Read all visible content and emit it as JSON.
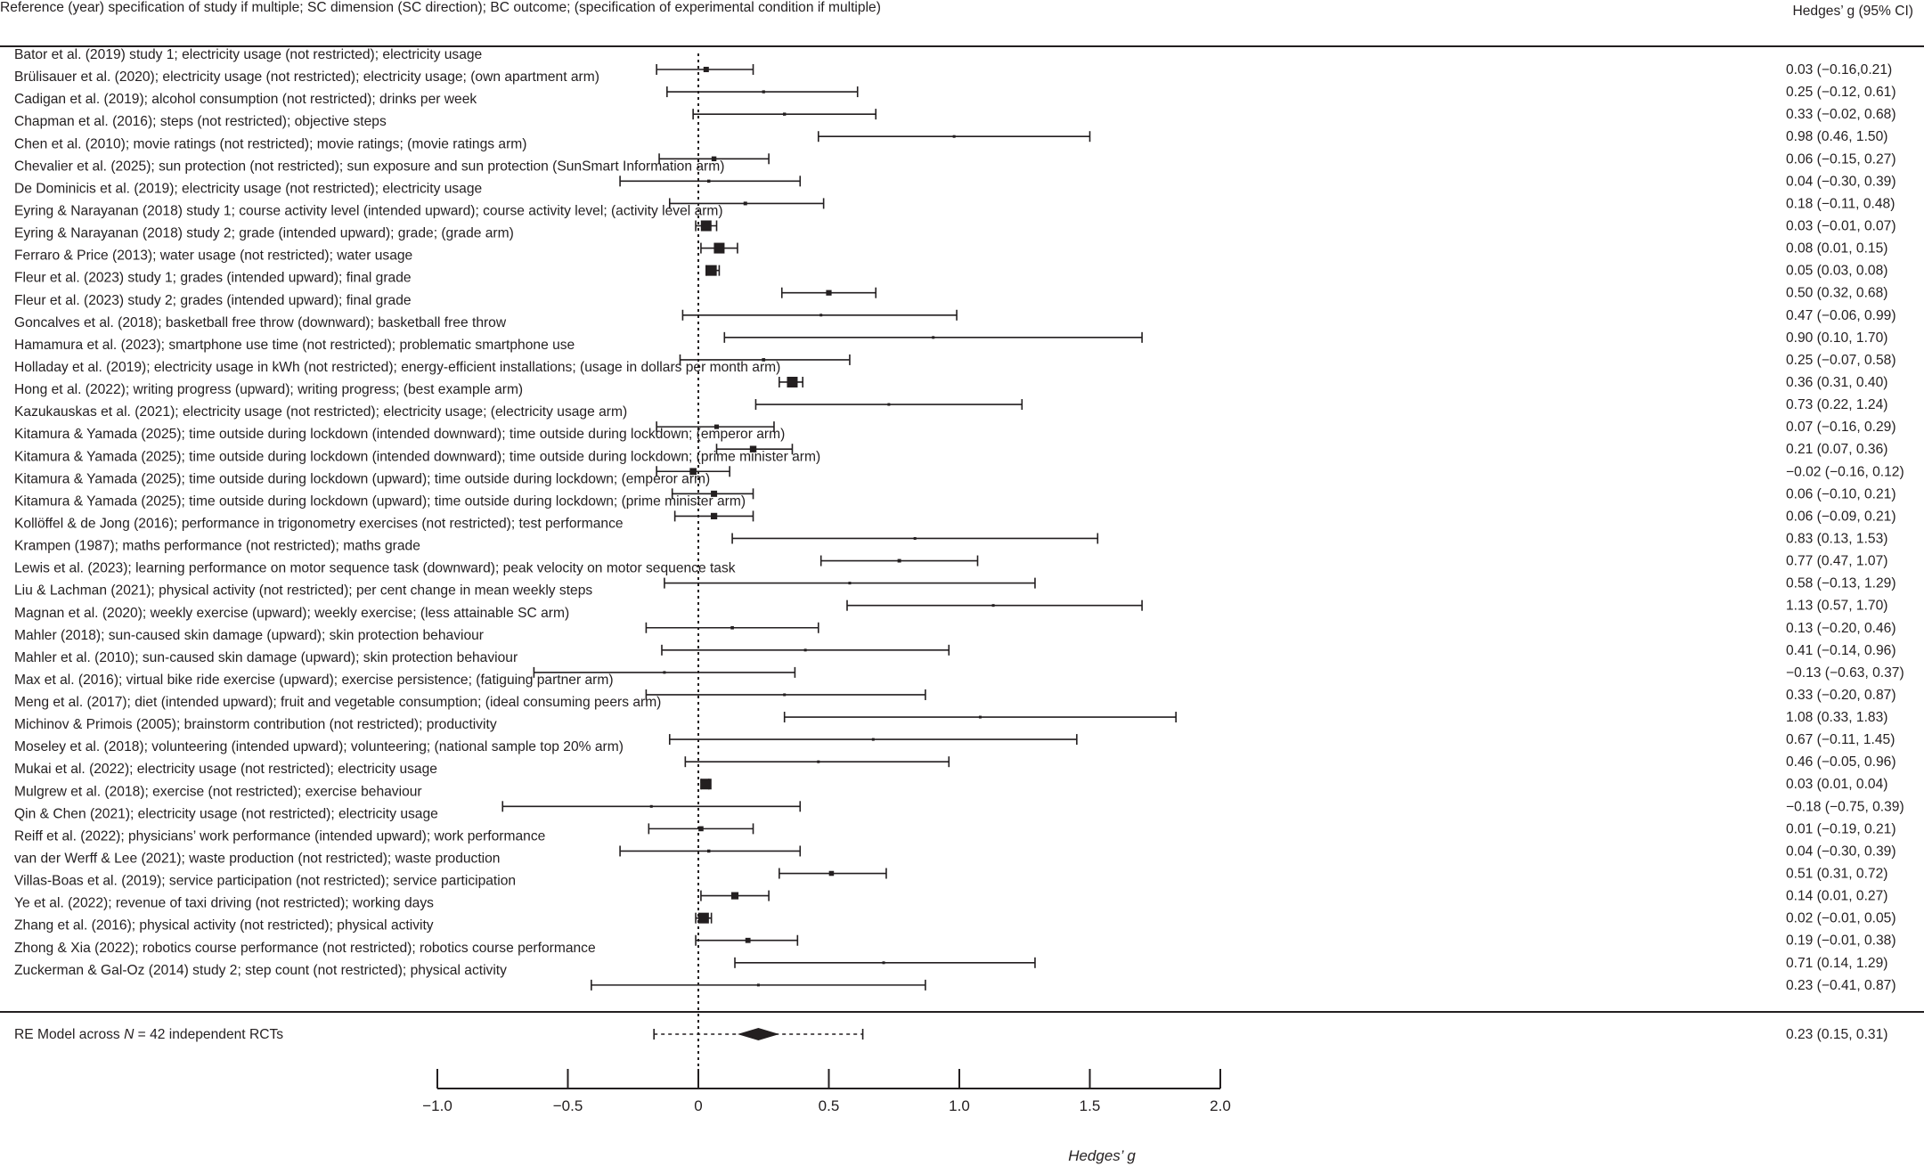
{
  "chart_data": {
    "type": "forest",
    "column_header_left": "Reference (year) specification of study if multiple; SC dimension (SC direction); BC outcome; (specification of experimental condition if multiple)",
    "column_header_right": "Hedges’ g (95% CI)",
    "xlabel": "Hedges’ g",
    "xlim": [
      -1.0,
      2.0
    ],
    "ticks": [
      -1.0,
      -0.5,
      0,
      0.5,
      1.0,
      1.5,
      2.0
    ],
    "tick_labels": [
      "−1.0",
      "−0.5",
      "0",
      "0.5",
      "1.0",
      "1.5",
      "2.0"
    ],
    "reference_line": 0,
    "studies": [
      {
        "label": "Bator et al. (2019) study 1; electricity usage (not restricted); electricity usage",
        "g": 0.03,
        "lo": -0.16,
        "hi": 0.21,
        "ci_text": "0.03 (−0.16,0.21)"
      },
      {
        "label": "Brülisauer et al. (2020); electricity usage (not restricted); electricity usage; (own apartment arm)",
        "g": 0.25,
        "lo": -0.12,
        "hi": 0.61,
        "ci_text": "0.25 (−0.12, 0.61)"
      },
      {
        "label": "Cadigan et al. (2019); alcohol consumption (not restricted); drinks per week",
        "g": 0.33,
        "lo": -0.02,
        "hi": 0.68,
        "ci_text": "0.33 (−0.02, 0.68)"
      },
      {
        "label": "Chapman et al. (2016); steps (not restricted); objective steps",
        "g": 0.98,
        "lo": 0.46,
        "hi": 1.5,
        "ci_text": "0.98 (0.46, 1.50)"
      },
      {
        "label": "Chen et al. (2010); movie ratings (not restricted); movie ratings; (movie ratings arm)",
        "g": 0.06,
        "lo": -0.15,
        "hi": 0.27,
        "ci_text": "0.06 (−0.15, 0.27)"
      },
      {
        "label": "Chevalier et al. (2025); sun protection (not restricted); sun exposure and sun protection (SunSmart Information arm)",
        "g": 0.04,
        "lo": -0.3,
        "hi": 0.39,
        "ci_text": "0.04 (−0.30, 0.39)"
      },
      {
        "label": "De Dominicis et al. (2019); electricity usage (not restricted); electricity usage",
        "g": 0.18,
        "lo": -0.11,
        "hi": 0.48,
        "ci_text": "0.18 (−0.11, 0.48)"
      },
      {
        "label": "Eyring & Narayanan (2018) study 1; course activity level (intended upward); course activity level; (activity level arm)",
        "g": 0.03,
        "lo": -0.01,
        "hi": 0.07,
        "ci_text": "0.03 (−0.01, 0.07)"
      },
      {
        "label": "Eyring & Narayanan (2018) study 2; grade (intended upward); grade; (grade arm)",
        "g": 0.08,
        "lo": 0.01,
        "hi": 0.15,
        "ci_text": "0.08 (0.01, 0.15)"
      },
      {
        "label": "Ferraro & Price (2013); water usage (not restricted); water usage",
        "g": 0.05,
        "lo": 0.03,
        "hi": 0.08,
        "ci_text": "0.05 (0.03, 0.08)"
      },
      {
        "label": "Fleur et al. (2023) study 1; grades (intended upward); final grade",
        "g": 0.5,
        "lo": 0.32,
        "hi": 0.68,
        "ci_text": "0.50 (0.32, 0.68)"
      },
      {
        "label": "Fleur et al. (2023) study 2; grades (intended upward); final grade",
        "g": 0.47,
        "lo": -0.06,
        "hi": 0.99,
        "ci_text": "0.47 (−0.06, 0.99)"
      },
      {
        "label": "Goncalves et al. (2018); basketball free throw (downward); basketball free throw",
        "g": 0.9,
        "lo": 0.1,
        "hi": 1.7,
        "ci_text": "0.90 (0.10, 1.70)"
      },
      {
        "label": "Hamamura et al. (2023); smartphone use time (not restricted); problematic smartphone use",
        "g": 0.25,
        "lo": -0.07,
        "hi": 0.58,
        "ci_text": "0.25 (−0.07, 0.58)"
      },
      {
        "label": "Holladay et al. (2019); electricity usage in kWh (not restricted); energy-efficient installations; (usage in dollars per month arm)",
        "g": 0.36,
        "lo": 0.31,
        "hi": 0.4,
        "ci_text": "0.36 (0.31, 0.40)"
      },
      {
        "label": "Hong et al. (2022); writing progress (upward); writing progress; (best example arm)",
        "g": 0.73,
        "lo": 0.22,
        "hi": 1.24,
        "ci_text": "0.73 (0.22, 1.24)"
      },
      {
        "label": "Kazukauskas et al. (2021); electricity usage (not restricted); electricity usage; (electricity usage arm)",
        "g": 0.07,
        "lo": -0.16,
        "hi": 0.29,
        "ci_text": "0.07 (−0.16, 0.29)"
      },
      {
        "label": "Kitamura & Yamada (2025); time outside during lockdown (intended downward); time outside during lockdown; (emperor arm)",
        "g": 0.21,
        "lo": 0.07,
        "hi": 0.36,
        "ci_text": "0.21 (0.07, 0.36)"
      },
      {
        "label": "Kitamura & Yamada (2025); time outside during lockdown (intended downward); time outside during lockdown; (prime minister arm)",
        "g": -0.02,
        "lo": -0.16,
        "hi": 0.12,
        "ci_text": "−0.02 (−0.16, 0.12)"
      },
      {
        "label": "Kitamura & Yamada (2025); time outside during lockdown (upward); time outside during lockdown; (emperor arm)",
        "g": 0.06,
        "lo": -0.1,
        "hi": 0.21,
        "ci_text": "0.06 (−0.10, 0.21)"
      },
      {
        "label": "Kitamura & Yamada (2025); time outside during lockdown (upward); time outside during lockdown; (prime minister arm)",
        "g": 0.06,
        "lo": -0.09,
        "hi": 0.21,
        "ci_text": "0.06 (−0.09, 0.21)"
      },
      {
        "label": "Kollöffel & de Jong (2016); performance in trigonometry exercises (not restricted); test performance",
        "g": 0.83,
        "lo": 0.13,
        "hi": 1.53,
        "ci_text": "0.83 (0.13, 1.53)"
      },
      {
        "label": "Krampen (1987); maths performance (not restricted); maths grade",
        "g": 0.77,
        "lo": 0.47,
        "hi": 1.07,
        "ci_text": "0.77 (0.47, 1.07)"
      },
      {
        "label": "Lewis et al. (2023); learning performance on motor sequence task (downward); peak velocity on motor sequence task",
        "g": 0.58,
        "lo": -0.13,
        "hi": 1.29,
        "ci_text": "0.58 (−0.13, 1.29)"
      },
      {
        "label": "Liu & Lachman (2021); physical activity (not restricted); per cent change in mean weekly steps",
        "g": 1.13,
        "lo": 0.57,
        "hi": 1.7,
        "ci_text": "1.13 (0.57, 1.70)"
      },
      {
        "label": "Magnan et al. (2020); weekly exercise (upward); weekly exercise; (less attainable SC arm)",
        "g": 0.13,
        "lo": -0.2,
        "hi": 0.46,
        "ci_text": "0.13 (−0.20, 0.46)"
      },
      {
        "label": "Mahler (2018); sun-caused skin damage (upward); skin protection behaviour",
        "g": 0.41,
        "lo": -0.14,
        "hi": 0.96,
        "ci_text": "0.41 (−0.14, 0.96)"
      },
      {
        "label": "Mahler et al. (2010); sun-caused skin damage (upward); skin protection behaviour",
        "g": -0.13,
        "lo": -0.63,
        "hi": 0.37,
        "ci_text": "−0.13 (−0.63, 0.37)"
      },
      {
        "label": "Max et al. (2016); virtual bike ride exercise (upward); exercise persistence; (fatiguing partner arm)",
        "g": 0.33,
        "lo": -0.2,
        "hi": 0.87,
        "ci_text": "0.33 (−0.20, 0.87)"
      },
      {
        "label": "Meng et al. (2017); diet (intended upward); fruit and vegetable consumption; (ideal consuming peers arm)",
        "g": 1.08,
        "lo": 0.33,
        "hi": 1.83,
        "ci_text": "1.08 (0.33, 1.83)"
      },
      {
        "label": "Michinov & Primois (2005); brainstorm contribution (not restricted); productivity",
        "g": 0.67,
        "lo": -0.11,
        "hi": 1.45,
        "ci_text": "0.67 (−0.11, 1.45)"
      },
      {
        "label": "Moseley et al. (2018); volunteering (intended upward); volunteering; (national sample top 20% arm)",
        "g": 0.46,
        "lo": -0.05,
        "hi": 0.96,
        "ci_text": "0.46 (−0.05, 0.96)"
      },
      {
        "label": "Mukai et al. (2022); electricity usage (not restricted); electricity usage",
        "g": 0.03,
        "lo": 0.01,
        "hi": 0.04,
        "ci_text": "0.03 (0.01, 0.04)"
      },
      {
        "label": "Mulgrew et al. (2018); exercise (not restricted); exercise behaviour",
        "g": -0.18,
        "lo": -0.75,
        "hi": 0.39,
        "ci_text": "−0.18 (−0.75, 0.39)"
      },
      {
        "label": "Qin & Chen (2021); electricity usage (not restricted); electricity usage",
        "g": 0.01,
        "lo": -0.19,
        "hi": 0.21,
        "ci_text": "0.01 (−0.19, 0.21)"
      },
      {
        "label": "Reiff et al. (2022); physicians’ work performance (intended upward); work performance",
        "g": 0.04,
        "lo": -0.3,
        "hi": 0.39,
        "ci_text": "0.04 (−0.30, 0.39)"
      },
      {
        "label": "van der Werff & Lee (2021); waste production (not restricted); waste production",
        "g": 0.51,
        "lo": 0.31,
        "hi": 0.72,
        "ci_text": "0.51 (0.31, 0.72)"
      },
      {
        "label": "Villas-Boas et al. (2019); service participation (not restricted); service participation",
        "g": 0.14,
        "lo": 0.01,
        "hi": 0.27,
        "ci_text": "0.14 (0.01, 0.27)"
      },
      {
        "label": "Ye et al. (2022); revenue of taxi driving (not restricted); working days",
        "g": 0.02,
        "lo": -0.01,
        "hi": 0.05,
        "ci_text": "0.02 (−0.01, 0.05)"
      },
      {
        "label": "Zhang et al. (2016); physical activity (not restricted); physical activity",
        "g": 0.19,
        "lo": -0.01,
        "hi": 0.38,
        "ci_text": "0.19 (−0.01, 0.38)"
      },
      {
        "label": "Zhong & Xia (2022); robotics course performance (not restricted); robotics course performance",
        "g": 0.71,
        "lo": 0.14,
        "hi": 1.29,
        "ci_text": "0.71 (0.14, 1.29)"
      },
      {
        "label": "Zuckerman & Gal-Oz (2014) study 2; step count (not restricted); physical activity",
        "g": 0.23,
        "lo": -0.41,
        "hi": 0.87,
        "ci_text": "0.23 (−0.41, 0.87)"
      }
    ],
    "summary": {
      "label_prefix": "RE Model across ",
      "label_n": "N",
      "label_suffix": " = 42 independent RCTs",
      "g": 0.23,
      "lo": 0.15,
      "hi": 0.31,
      "pi_lo": -0.17,
      "pi_hi": 0.63,
      "ci_text": "0.23 (0.15, 0.31)"
    }
  }
}
